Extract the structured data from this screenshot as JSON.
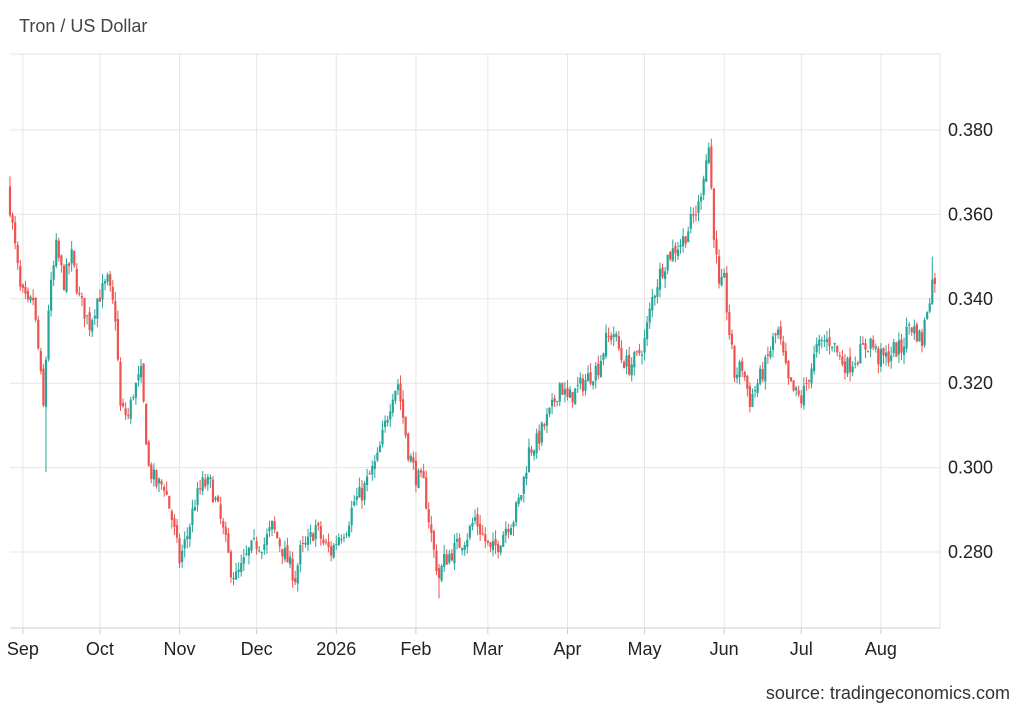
{
  "title": "Tron / US Dollar",
  "source": "source: tradingeconomics.com",
  "colors": {
    "up": "#26a69a",
    "down": "#ef5350",
    "grid": "#e6e6e6",
    "axis": "#cccccc"
  },
  "chart_data": {
    "type": "candlestick",
    "title": "Tron / US Dollar",
    "x_range": [
      "2025-08-27",
      "2026-08-24"
    ],
    "ylim": [
      0.262,
      0.398
    ],
    "y_ticks": [
      "0.280",
      "0.300",
      "0.320",
      "0.340",
      "0.360",
      "0.380"
    ],
    "x_ticks": [
      {
        "label": "Sep",
        "date": "2025-09-01"
      },
      {
        "label": "Oct",
        "date": "2025-10-01"
      },
      {
        "label": "Nov",
        "date": "2025-11-01"
      },
      {
        "label": "Dec",
        "date": "2025-12-01"
      },
      {
        "label": "2026",
        "date": "2026-01-01"
      },
      {
        "label": "Feb",
        "date": "2026-02-01"
      },
      {
        "label": "Mar",
        "date": "2026-03-01"
      },
      {
        "label": "Apr",
        "date": "2026-04-01"
      },
      {
        "label": "May",
        "date": "2026-05-01"
      },
      {
        "label": "Jun",
        "date": "2026-06-01"
      },
      {
        "label": "Jul",
        "date": "2026-07-01"
      },
      {
        "label": "Aug",
        "date": "2026-08-01"
      }
    ],
    "grid": true,
    "close_points": [
      [
        "2025-08-27",
        0.362
      ],
      [
        "2025-08-29",
        0.352
      ],
      [
        "2025-08-31",
        0.342
      ],
      [
        "2025-09-03",
        0.338
      ],
      [
        "2025-09-05",
        0.34
      ],
      [
        "2025-09-07",
        0.328
      ],
      [
        "2025-09-09",
        0.314
      ],
      [
        "2025-09-11",
        0.338
      ],
      [
        "2025-09-14",
        0.352
      ],
      [
        "2025-09-17",
        0.344
      ],
      [
        "2025-09-20",
        0.35
      ],
      [
        "2025-09-23",
        0.34
      ],
      [
        "2025-09-27",
        0.334
      ],
      [
        "2025-09-30",
        0.34
      ],
      [
        "2025-10-04",
        0.344
      ],
      [
        "2025-10-07",
        0.336
      ],
      [
        "2025-10-09",
        0.314
      ],
      [
        "2025-10-12",
        0.312
      ],
      [
        "2025-10-14",
        0.318
      ],
      [
        "2025-10-17",
        0.322
      ],
      [
        "2025-10-20",
        0.3
      ],
      [
        "2025-10-23",
        0.296
      ],
      [
        "2025-10-26",
        0.296
      ],
      [
        "2025-10-29",
        0.288
      ],
      [
        "2025-11-01",
        0.278
      ],
      [
        "2025-11-04",
        0.284
      ],
      [
        "2025-11-07",
        0.292
      ],
      [
        "2025-11-10",
        0.296
      ],
      [
        "2025-11-13",
        0.296
      ],
      [
        "2025-11-16",
        0.29
      ],
      [
        "2025-11-19",
        0.282
      ],
      [
        "2025-11-21",
        0.276
      ],
      [
        "2025-11-23",
        0.274
      ],
      [
        "2025-11-25",
        0.276
      ],
      [
        "2025-11-28",
        0.28
      ],
      [
        "2025-12-01",
        0.282
      ],
      [
        "2025-12-04",
        0.282
      ],
      [
        "2025-12-07",
        0.286
      ],
      [
        "2025-12-10",
        0.282
      ],
      [
        "2025-12-13",
        0.278
      ],
      [
        "2025-12-16",
        0.274
      ],
      [
        "2025-12-18",
        0.28
      ],
      [
        "2025-12-21",
        0.282
      ],
      [
        "2025-12-24",
        0.286
      ],
      [
        "2025-12-27",
        0.282
      ],
      [
        "2025-12-30",
        0.28
      ],
      [
        "2026-01-02",
        0.284
      ],
      [
        "2026-01-05",
        0.286
      ],
      [
        "2026-01-08",
        0.292
      ],
      [
        "2026-01-11",
        0.294
      ],
      [
        "2026-01-14",
        0.298
      ],
      [
        "2026-01-17",
        0.302
      ],
      [
        "2026-01-20",
        0.31
      ],
      [
        "2026-01-23",
        0.318
      ],
      [
        "2026-01-25",
        0.32
      ],
      [
        "2026-01-27",
        0.312
      ],
      [
        "2026-01-29",
        0.304
      ],
      [
        "2026-02-01",
        0.298
      ],
      [
        "2026-02-04",
        0.296
      ],
      [
        "2026-02-06",
        0.288
      ],
      [
        "2026-02-08",
        0.28
      ],
      [
        "2026-02-10",
        0.274
      ],
      [
        "2026-02-12",
        0.278
      ],
      [
        "2026-02-15",
        0.28
      ],
      [
        "2026-02-18",
        0.282
      ],
      [
        "2026-02-21",
        0.284
      ],
      [
        "2026-02-24",
        0.288
      ],
      [
        "2026-02-27",
        0.284
      ],
      [
        "2026-03-02",
        0.28
      ],
      [
        "2026-03-05",
        0.282
      ],
      [
        "2026-03-08",
        0.286
      ],
      [
        "2026-03-11",
        0.288
      ],
      [
        "2026-03-14",
        0.294
      ],
      [
        "2026-03-17",
        0.304
      ],
      [
        "2026-03-20",
        0.306
      ],
      [
        "2026-03-23",
        0.31
      ],
      [
        "2026-03-26",
        0.314
      ],
      [
        "2026-03-29",
        0.32
      ],
      [
        "2026-04-01",
        0.316
      ],
      [
        "2026-04-04",
        0.318
      ],
      [
        "2026-04-07",
        0.32
      ],
      [
        "2026-04-10",
        0.322
      ],
      [
        "2026-04-13",
        0.324
      ],
      [
        "2026-04-16",
        0.33
      ],
      [
        "2026-04-19",
        0.332
      ],
      [
        "2026-04-22",
        0.326
      ],
      [
        "2026-04-25",
        0.324
      ],
      [
        "2026-04-28",
        0.326
      ],
      [
        "2026-05-01",
        0.33
      ],
      [
        "2026-05-04",
        0.34
      ],
      [
        "2026-05-07",
        0.346
      ],
      [
        "2026-05-10",
        0.35
      ],
      [
        "2026-05-13",
        0.352
      ],
      [
        "2026-05-16",
        0.354
      ],
      [
        "2026-05-19",
        0.358
      ],
      [
        "2026-05-22",
        0.362
      ],
      [
        "2026-05-24",
        0.37
      ],
      [
        "2026-05-26",
        0.376
      ],
      [
        "2026-05-28",
        0.356
      ],
      [
        "2026-05-30",
        0.342
      ],
      [
        "2026-06-01",
        0.344
      ],
      [
        "2026-06-03",
        0.332
      ],
      [
        "2026-06-05",
        0.322
      ],
      [
        "2026-06-08",
        0.324
      ],
      [
        "2026-06-11",
        0.316
      ],
      [
        "2026-06-14",
        0.32
      ],
      [
        "2026-06-17",
        0.324
      ],
      [
        "2026-06-20",
        0.33
      ],
      [
        "2026-06-22",
        0.332
      ],
      [
        "2026-06-24",
        0.326
      ],
      [
        "2026-06-26",
        0.32
      ],
      [
        "2026-06-28",
        0.318
      ],
      [
        "2026-07-01",
        0.316
      ],
      [
        "2026-07-04",
        0.322
      ],
      [
        "2026-07-07",
        0.328
      ],
      [
        "2026-07-10",
        0.33
      ],
      [
        "2026-07-13",
        0.33
      ],
      [
        "2026-07-16",
        0.326
      ],
      [
        "2026-07-19",
        0.324
      ],
      [
        "2026-07-22",
        0.326
      ],
      [
        "2026-07-25",
        0.328
      ],
      [
        "2026-07-28",
        0.33
      ],
      [
        "2026-07-31",
        0.326
      ],
      [
        "2026-08-03",
        0.326
      ],
      [
        "2026-08-06",
        0.328
      ],
      [
        "2026-08-09",
        0.328
      ],
      [
        "2026-08-12",
        0.334
      ],
      [
        "2026-08-15",
        0.332
      ],
      [
        "2026-08-17",
        0.33
      ],
      [
        "2026-08-19",
        0.338
      ],
      [
        "2026-08-21",
        0.344
      ],
      [
        "2026-08-22",
        0.345
      ]
    ],
    "notable_wicks": [
      {
        "date": "2025-08-27",
        "high": 0.369
      },
      {
        "date": "2025-09-10",
        "low": 0.299
      },
      {
        "date": "2026-01-25",
        "high": 0.321
      },
      {
        "date": "2026-02-10",
        "low": 0.269
      },
      {
        "date": "2026-05-26",
        "high": 0.377
      },
      {
        "date": "2026-08-21",
        "high": 0.35
      }
    ]
  }
}
